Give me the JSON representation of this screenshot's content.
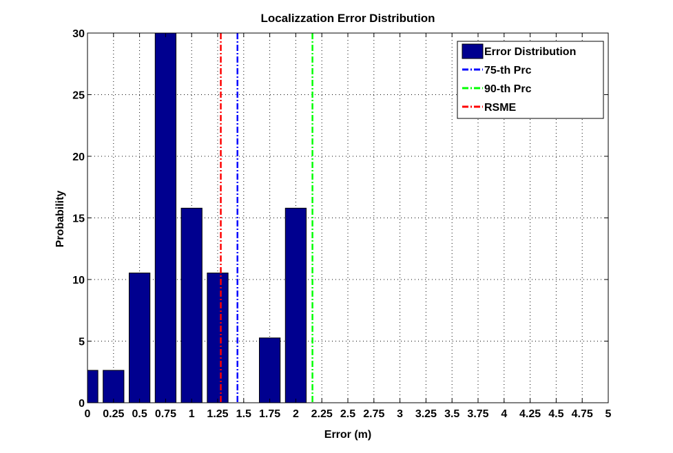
{
  "chart_data": {
    "type": "bar",
    "title": "Localizzation Error Distribution",
    "xlabel": "Error (m)",
    "ylabel": "Probability",
    "xlim": [
      0,
      5
    ],
    "ylim": [
      0,
      30
    ],
    "grid": true,
    "legend_position": "top-right",
    "x_ticks": [
      0,
      0.25,
      0.5,
      0.75,
      1,
      1.25,
      1.5,
      1.75,
      2,
      2.25,
      2.5,
      2.75,
      3,
      3.25,
      3.5,
      3.75,
      4,
      4.25,
      4.5,
      4.75,
      5
    ],
    "x_tick_labels": [
      "0",
      "0.25",
      "0.5",
      "0.75",
      "1",
      "1.25",
      "1.5",
      "1.75",
      "2",
      "2.25",
      "2.5",
      "2.75",
      "3",
      "3.25",
      "3.5",
      "3.75",
      "4",
      "4.25",
      "4.5",
      "4.75",
      "5"
    ],
    "y_ticks": [
      0,
      5,
      10,
      15,
      20,
      25,
      30
    ],
    "y_tick_labels": [
      "0",
      "5",
      "10",
      "15",
      "20",
      "25",
      "30"
    ],
    "series": [
      {
        "name": "Error Distribution",
        "kind": "bar",
        "color": "#00008f",
        "x": [
          0.0,
          0.25,
          0.5,
          0.75,
          1.0,
          1.25,
          1.75,
          2.0
        ],
        "values": [
          2.63,
          2.63,
          10.53,
          30.0,
          15.79,
          10.53,
          5.26,
          15.79
        ]
      },
      {
        "name": "75-th Prc",
        "kind": "vline",
        "x": 1.44,
        "color": "#0000ff",
        "dash": "dashdot"
      },
      {
        "name": "90-th Prc",
        "kind": "vline",
        "x": 2.16,
        "color": "#00ff00",
        "dash": "dashdot"
      },
      {
        "name": "RSME",
        "kind": "vline",
        "x": 1.28,
        "color": "#ff0000",
        "dash": "dashdot"
      }
    ],
    "bar_width": 0.2
  }
}
